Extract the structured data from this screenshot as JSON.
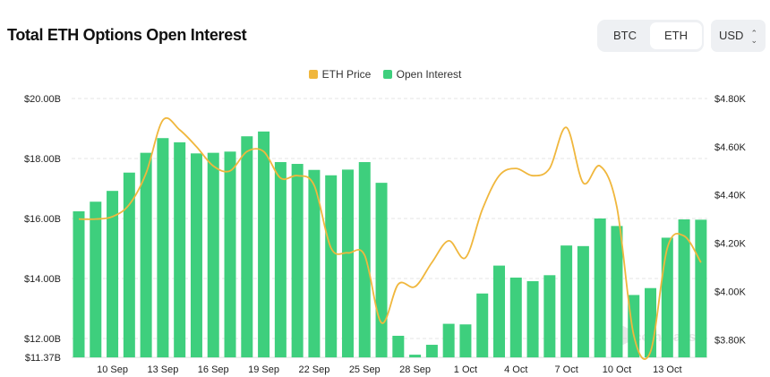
{
  "header": {
    "title": "Total ETH Options Open Interest"
  },
  "asset_toggle": {
    "options": [
      "BTC",
      "ETH"
    ],
    "selected": "ETH"
  },
  "currency_select": {
    "value": "USD",
    "icon": "chevron-up-down-icon"
  },
  "colors": {
    "open_interest": "#3ecf7d",
    "eth_price": "#f0b73d",
    "grid": "#e6e6e6"
  },
  "chart_data": {
    "type": "bar+line",
    "categories": [
      "8 Sep",
      "9 Sep",
      "10 Sep",
      "11 Sep",
      "12 Sep",
      "13 Sep",
      "14 Sep",
      "15 Sep",
      "16 Sep",
      "17 Sep",
      "18 Sep",
      "19 Sep",
      "20 Sep",
      "21 Sep",
      "22 Sep",
      "23 Sep",
      "24 Sep",
      "25 Sep",
      "26 Sep",
      "27 Sep",
      "28 Sep",
      "29 Sep",
      "30 Sep",
      "1 Oct",
      "2 Oct",
      "3 Oct",
      "4 Oct",
      "5 Oct",
      "6 Oct",
      "7 Oct",
      "8 Oct",
      "9 Oct",
      "10 Oct",
      "11 Oct",
      "12 Oct",
      "13 Oct",
      "14 Oct",
      "15 Oct"
    ],
    "x_tick_labels": [
      "10 Sep",
      "13 Sep",
      "16 Sep",
      "19 Sep",
      "22 Sep",
      "25 Sep",
      "28 Sep",
      "1 Oct",
      "4 Oct",
      "7 Oct",
      "10 Oct",
      "13 Oct"
    ],
    "series": [
      {
        "name": "ETH Price",
        "type": "line",
        "axis": "right",
        "unit": "$K",
        "values": [
          4.3,
          4.3,
          4.31,
          4.36,
          4.49,
          4.71,
          4.67,
          4.6,
          4.52,
          4.5,
          4.58,
          4.58,
          4.47,
          4.48,
          4.44,
          4.18,
          4.16,
          4.15,
          3.87,
          4.03,
          4.02,
          4.12,
          4.21,
          4.14,
          4.34,
          4.48,
          4.51,
          4.48,
          4.51,
          4.68,
          4.45,
          4.52,
          4.35,
          3.82,
          3.75,
          4.18,
          4.23,
          4.12
        ]
      },
      {
        "name": "Open Interest",
        "type": "bar",
        "axis": "left",
        "unit": "$B",
        "values": [
          16.24,
          16.56,
          16.92,
          17.53,
          18.19,
          18.68,
          18.54,
          18.17,
          18.19,
          18.23,
          18.74,
          18.9,
          17.88,
          17.82,
          17.62,
          17.44,
          17.63,
          17.88,
          17.19,
          12.09,
          11.46,
          11.79,
          12.49,
          12.47,
          13.5,
          14.43,
          14.03,
          13.91,
          14.11,
          15.1,
          15.08,
          16.0,
          15.75,
          13.45,
          13.68,
          15.36,
          15.97,
          15.96
        ]
      }
    ],
    "left_axis": {
      "range": [
        11.37,
        20.0
      ],
      "tick_labels": [
        "$20.00B",
        "$18.00B",
        "$16.00B",
        "$14.00B",
        "$12.00B",
        "$11.37B"
      ],
      "tick_values": [
        20,
        18,
        16,
        14,
        12,
        11.37
      ]
    },
    "right_axis": {
      "range": [
        3.7,
        4.8
      ],
      "tick_labels": [
        "$4.80K",
        "$4.60K",
        "$4.40K",
        "$4.20K",
        "$4.00K",
        "$3.80K"
      ],
      "tick_values": [
        4.8,
        4.6,
        4.4,
        4.2,
        4.0,
        3.8
      ]
    },
    "grid": true,
    "legend": "top-center",
    "watermark": "coinglass"
  }
}
